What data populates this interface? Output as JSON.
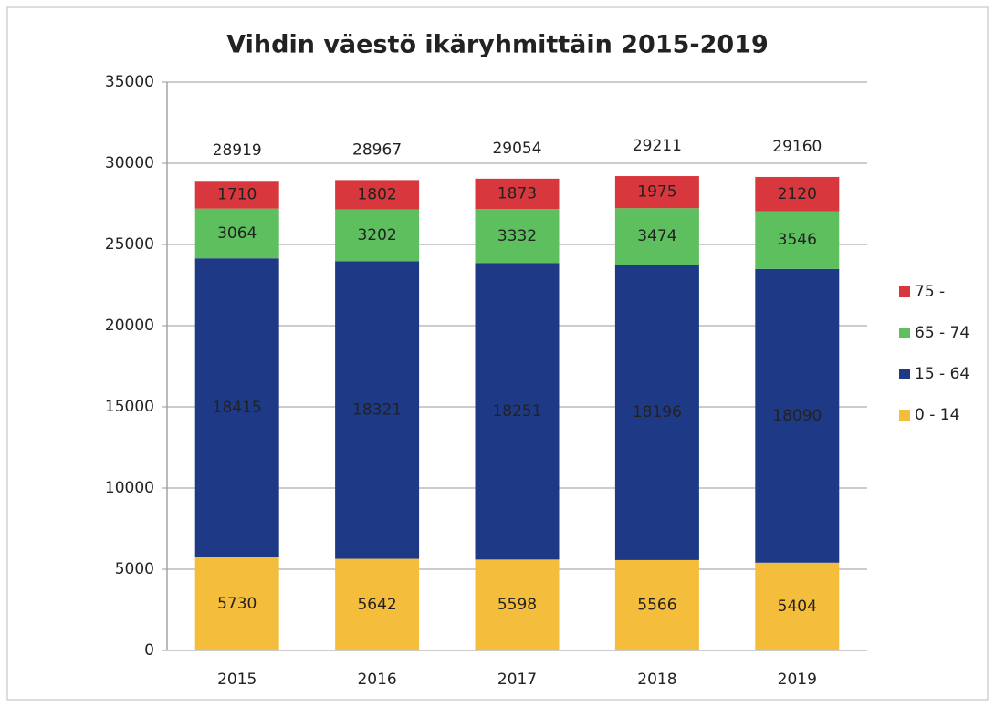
{
  "chart_data": {
    "type": "stacked_bar",
    "title": "Vihdin väestö ikäryhmittäin 2015-2019",
    "categories": [
      "2015",
      "2016",
      "2017",
      "2018",
      "2019"
    ],
    "series": [
      {
        "name": "0 - 14",
        "color": "#f5bd3c",
        "values": [
          5730,
          5642,
          5598,
          5566,
          5404
        ]
      },
      {
        "name": "15 - 64",
        "color": "#1e3a86",
        "values": [
          18415,
          18321,
          18251,
          18196,
          18090
        ]
      },
      {
        "name": "65 - 74",
        "color": "#5dbf5e",
        "values": [
          3064,
          3202,
          3332,
          3474,
          3546
        ]
      },
      {
        "name": "75 -",
        "color": "#d8383d",
        "values": [
          1710,
          1802,
          1873,
          1975,
          2120
        ]
      }
    ],
    "totals": [
      28919,
      28967,
      29054,
      29211,
      29160
    ],
    "ylim": [
      0,
      35000
    ],
    "yticks": [
      0,
      5000,
      10000,
      15000,
      20000,
      25000,
      30000,
      35000
    ],
    "grid": true,
    "legend": "right"
  }
}
